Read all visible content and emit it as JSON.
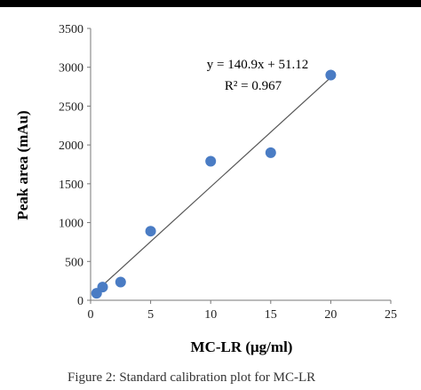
{
  "chart_data": {
    "type": "scatter",
    "title": "",
    "xlabel": "MC-LR (μg/ml)",
    "ylabel": "Peak area (mAu)",
    "xlim": [
      0,
      25
    ],
    "ylim": [
      0,
      3500
    ],
    "xticks": [
      0,
      5,
      10,
      15,
      20,
      25
    ],
    "yticks": [
      0,
      500,
      1000,
      1500,
      2000,
      2500,
      3000,
      3500
    ],
    "grid": false,
    "marker_color": "#4a7cc4",
    "trendline_color": "#555555",
    "series": [
      {
        "x": [
          0.5,
          1,
          2.5,
          5,
          10,
          15,
          20
        ],
        "y": [
          90,
          170,
          235,
          890,
          1790,
          1900,
          2900
        ]
      }
    ],
    "trendline": {
      "slope": 140.9,
      "intercept": 51.12,
      "x_range": [
        0.5,
        20
      ]
    },
    "annotations": {
      "equation": "y = 140.9x + 51.12",
      "r_squared": "R² = 0.967"
    }
  },
  "caption": "Figure 2: Standard calibration plot for MC-LR"
}
